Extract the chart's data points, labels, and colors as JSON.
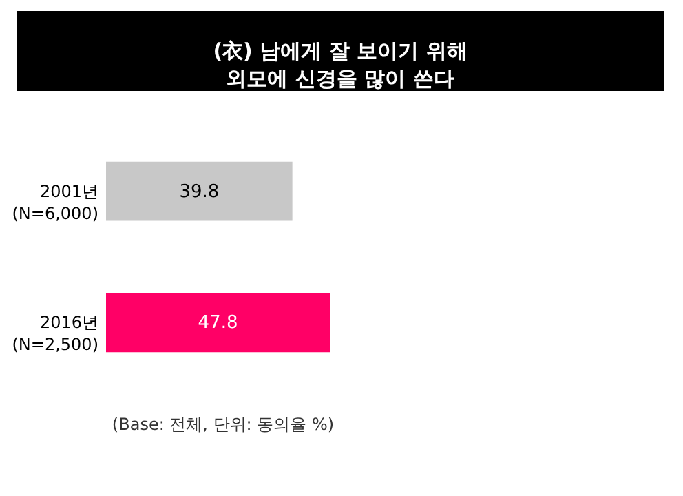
{
  "chart_data": {
    "type": "bar",
    "orientation": "horizontal",
    "title": "(衣) 남에게 잘 보이기 위해\n외모에 신경을 많이 쓴다",
    "categories": [
      "2001년\n(N=6,000)",
      "2016년\n(N=2,500)"
    ],
    "values": [
      39.8,
      47.8
    ],
    "colors": [
      "#c8c8c8",
      "#ff0066"
    ],
    "data_labels": true,
    "tick_labels": "y",
    "annotations": [
      "(Base: 전체, 단위: 동의율 %)"
    ]
  }
}
